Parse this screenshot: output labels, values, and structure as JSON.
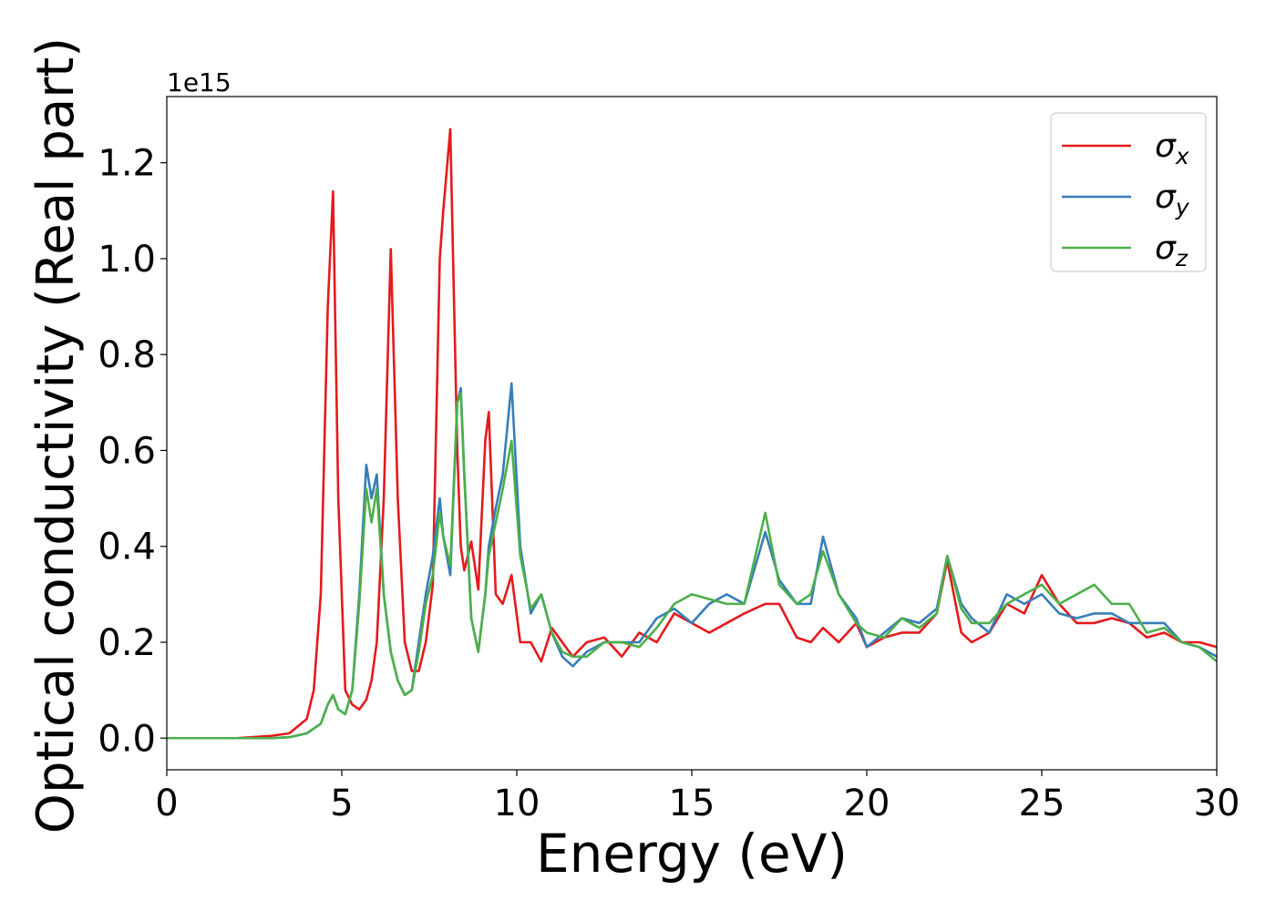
{
  "chart_data": {
    "type": "line",
    "xlabel": "Energy (eV)",
    "ylabel": "Optical conductivity (Real part)",
    "offset_label": "1e15",
    "xlim": [
      0,
      30
    ],
    "ylim": [
      -0.066,
      1.338
    ],
    "xticks": [
      0,
      5,
      10,
      15,
      20,
      25,
      30
    ],
    "yticks": [
      {
        "value": 0,
        "label": "0.0"
      },
      0.2,
      0.4,
      0.6,
      0.8,
      {
        "value": 1,
        "label": "1.0"
      },
      1.2
    ],
    "legend": "upper right",
    "x": [
      0,
      1,
      2,
      3,
      3.5,
      4,
      4.2,
      4.4,
      4.6,
      4.75,
      4.9,
      5.1,
      5.3,
      5.5,
      5.7,
      5.85,
      6.0,
      6.2,
      6.4,
      6.6,
      6.8,
      7.0,
      7.2,
      7.4,
      7.6,
      7.8,
      7.9,
      8.1,
      8.3,
      8.4,
      8.5,
      8.7,
      8.9,
      9.1,
      9.2,
      9.4,
      9.6,
      9.85,
      10.1,
      10.4,
      10.7,
      11,
      11.3,
      11.6,
      12,
      12.5,
      13,
      13.5,
      14,
      14.5,
      15,
      15.5,
      16,
      16.5,
      17.1,
      17.5,
      18,
      18.4,
      18.75,
      19.2,
      19.7,
      20,
      20.5,
      21,
      21.5,
      22,
      22.3,
      22.7,
      23,
      23.5,
      24,
      24.5,
      25,
      25.5,
      26,
      26.5,
      27,
      27.5,
      28,
      28.5,
      29,
      29.5,
      30
    ],
    "series": [
      {
        "name": "σx",
        "color": "#e41a1c",
        "values": [
          0,
          0,
          0,
          0.005,
          0.01,
          0.04,
          0.1,
          0.3,
          0.9,
          1.14,
          0.5,
          0.1,
          0.07,
          0.06,
          0.08,
          0.12,
          0.2,
          0.5,
          1.02,
          0.5,
          0.2,
          0.14,
          0.14,
          0.2,
          0.32,
          1.0,
          1.1,
          1.27,
          0.6,
          0.4,
          0.35,
          0.41,
          0.31,
          0.62,
          0.68,
          0.3,
          0.28,
          0.34,
          0.2,
          0.2,
          0.16,
          0.23,
          0.2,
          0.17,
          0.2,
          0.21,
          0.17,
          0.22,
          0.2,
          0.26,
          0.24,
          0.22,
          0.24,
          0.26,
          0.28,
          0.28,
          0.21,
          0.2,
          0.23,
          0.2,
          0.24,
          0.19,
          0.21,
          0.22,
          0.22,
          0.26,
          0.37,
          0.22,
          0.2,
          0.22,
          0.28,
          0.26,
          0.34,
          0.28,
          0.24,
          0.24,
          0.25,
          0.24,
          0.21,
          0.22,
          0.2,
          0.2,
          0.19
        ]
      },
      {
        "name": "σy",
        "color": "#377eb8",
        "values": [
          0,
          0,
          0,
          0,
          0.002,
          0.01,
          0.02,
          0.03,
          0.07,
          0.09,
          0.06,
          0.05,
          0.1,
          0.3,
          0.57,
          0.5,
          0.55,
          0.3,
          0.18,
          0.12,
          0.09,
          0.1,
          0.2,
          0.3,
          0.38,
          0.5,
          0.42,
          0.34,
          0.7,
          0.73,
          0.55,
          0.25,
          0.18,
          0.3,
          0.4,
          0.48,
          0.55,
          0.74,
          0.4,
          0.26,
          0.3,
          0.22,
          0.17,
          0.15,
          0.18,
          0.2,
          0.2,
          0.2,
          0.25,
          0.27,
          0.24,
          0.28,
          0.3,
          0.28,
          0.43,
          0.33,
          0.28,
          0.28,
          0.42,
          0.3,
          0.25,
          0.19,
          0.22,
          0.25,
          0.24,
          0.27,
          0.38,
          0.28,
          0.25,
          0.22,
          0.3,
          0.28,
          0.3,
          0.26,
          0.25,
          0.26,
          0.26,
          0.24,
          0.24,
          0.24,
          0.2,
          0.19,
          0.17
        ]
      },
      {
        "name": "σz",
        "color": "#4daf4a",
        "values": [
          0,
          0,
          0,
          0,
          0.002,
          0.01,
          0.02,
          0.03,
          0.07,
          0.09,
          0.06,
          0.05,
          0.1,
          0.28,
          0.52,
          0.45,
          0.52,
          0.3,
          0.18,
          0.12,
          0.09,
          0.1,
          0.18,
          0.28,
          0.34,
          0.47,
          0.42,
          0.36,
          0.7,
          0.72,
          0.55,
          0.25,
          0.18,
          0.3,
          0.38,
          0.45,
          0.52,
          0.62,
          0.38,
          0.27,
          0.3,
          0.22,
          0.18,
          0.17,
          0.17,
          0.2,
          0.2,
          0.19,
          0.23,
          0.28,
          0.3,
          0.29,
          0.28,
          0.28,
          0.47,
          0.32,
          0.28,
          0.3,
          0.39,
          0.3,
          0.24,
          0.22,
          0.21,
          0.25,
          0.23,
          0.26,
          0.38,
          0.27,
          0.24,
          0.24,
          0.28,
          0.3,
          0.32,
          0.28,
          0.3,
          0.32,
          0.28,
          0.28,
          0.22,
          0.23,
          0.2,
          0.19,
          0.16
        ]
      }
    ]
  }
}
